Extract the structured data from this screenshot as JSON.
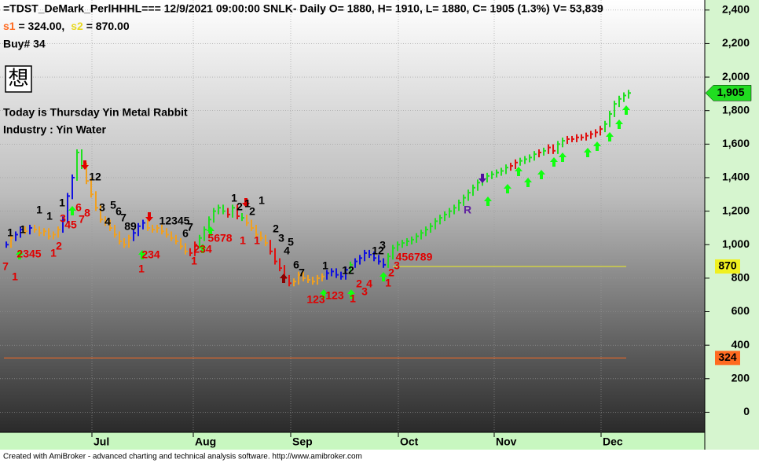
{
  "header": {
    "title": "=TDST_DeMark_PerlHHHL===  12/9/2021 09:00:00 SNLK- Daily O= 1880, H= 1910, L= 1880, C= 1905 (1.3%) V= 53,839",
    "s1_name": "s1",
    "s1_text": " = 324.00,",
    "s2_name": "s2",
    "s2_text": " = 870.00",
    "buy": "Buy# 34",
    "glyph": "想",
    "today": "Today is Thursday Yin Metal Rabbit",
    "industry": "Industry : Yin Water"
  },
  "chart_data": {
    "type": "ohlc",
    "ylim": [
      -120,
      2460
    ],
    "yticks": [
      0,
      200,
      400,
      600,
      800,
      {
        "value": 1000,
        "label": "1,000"
      },
      {
        "value": 1200,
        "label": "1,200"
      },
      {
        "value": 1400,
        "label": "1,400"
      },
      {
        "value": 1600,
        "label": "1,600"
      },
      {
        "value": 1800,
        "label": "1,800"
      },
      {
        "value": 2000,
        "label": "2,000"
      },
      {
        "value": 2200,
        "label": "2,200"
      },
      {
        "value": 2400,
        "label": "2,400"
      }
    ],
    "grid": true,
    "x_labels": [
      "Jul",
      "Aug",
      "Sep",
      "Oct",
      "Nov",
      "Dec"
    ],
    "series": [
      {
        "values": [
          1000,
          1040,
          1060,
          1090,
          1080,
          1100,
          1090,
          1070,
          1080,
          1050,
          1060,
          1090,
          1150,
          1290,
          1400,
          1550,
          1470,
          1380,
          1300,
          1220,
          1150,
          1130,
          1100,
          1060,
          1020,
          1000,
          1040,
          1070,
          1110,
          1130,
          1100,
          1090,
          1100,
          1080,
          1060,
          1040,
          1020,
          990,
          960,
          950,
          1000,
          1040,
          1090,
          1150,
          1200,
          1220,
          1200,
          1180,
          1220,
          1170,
          1160,
          1130,
          1100,
          1060,
          1040,
          1010,
          960,
          900,
          860,
          800,
          770,
          780,
          820,
          800,
          790,
          780,
          800,
          810,
          830,
          840,
          820,
          810,
          850,
          880,
          900,
          920,
          950,
          940,
          920,
          900,
          880,
          930,
          980,
          1000,
          1010,
          1020,
          1030,
          1050,
          1070,
          1090,
          1110,
          1140,
          1160,
          1180,
          1200,
          1220,
          1250,
          1280,
          1310,
          1340,
          1370,
          1390,
          1410,
          1420,
          1430,
          1440,
          1460,
          1470,
          1490,
          1500,
          1510,
          1520,
          1540,
          1550,
          1560,
          1580,
          1560,
          1600,
          1620,
          1630,
          1630,
          1640,
          1640,
          1650,
          1660,
          1670,
          1690,
          1720,
          1780,
          1840,
          1870,
          1890,
          1905
        ],
        "bar_colors": [
          "#1010e0",
          "#f0a020",
          "#1010e0",
          "#1010e0",
          "#f0a020",
          "#1010e0",
          "#f0a020",
          "#f0a020",
          "#f0a020",
          "#f0a020",
          "#f0a020",
          "#f0a020",
          "#1010e0",
          "#1010e0",
          "#1010e0",
          "#20e020",
          "#20e020",
          "#f0a020",
          "#f0a020",
          "#f0a020",
          "#f0a020",
          "#f0a020",
          "#f0a020",
          "#f0a020",
          "#f0a020",
          "#f0a020",
          "#f0a020",
          "#1010e0",
          "#1010e0",
          "#1010e0",
          "#f0a020",
          "#f0a020",
          "#f0a020",
          "#f0a020",
          "#f0a020",
          "#f0a020",
          "#f0a020",
          "#f0a020",
          "#f0a020",
          "#e01010",
          "#e01010",
          "#20e020",
          "#20e020",
          "#20e020",
          "#20e020",
          "#20e020",
          "#20e020",
          "#e01010",
          "#20e020",
          "#e01010",
          "#20e020",
          "#f0a020",
          "#f0a020",
          "#f0a020",
          "#f0a020",
          "#f0a020",
          "#e01010",
          "#e01010",
          "#e01010",
          "#e01010",
          "#e01010",
          "#f0a020",
          "#f0a020",
          "#f0a020",
          "#f0a020",
          "#f0a020",
          "#f0a020",
          "#f0a020",
          "#1010e0",
          "#1010e0",
          "#1010e0",
          "#1010e0",
          "#1010e0",
          "#20e020",
          "#1010e0",
          "#1010e0",
          "#1010e0",
          "#1010e0",
          "#1010e0",
          "#1010e0",
          "#1010e0",
          "#20e020",
          "#20e020",
          "#20e020",
          "#20e020",
          "#20e020",
          "#20e020",
          "#20e020",
          "#20e020",
          "#20e020",
          "#20e020",
          "#20e020",
          "#20e020",
          "#20e020",
          "#20e020",
          "#20e020",
          "#20e020",
          "#20e020",
          "#20e020",
          "#20e020",
          "#20e020",
          "#20e020",
          "#20e020",
          "#20e020",
          "#20e020",
          "#20e020",
          "#20e020",
          "#e01010",
          "#e01010",
          "#20e020",
          "#20e020",
          "#20e020",
          "#20e020",
          "#e01010",
          "#20e020",
          "#e01010",
          "#e01010",
          "#20e020",
          "#20e020",
          "#e01010",
          "#e01010",
          "#e01010",
          "#e01010",
          "#e01010",
          "#e01010",
          "#e01010",
          "#e01010",
          "#20e020",
          "#20e020",
          "#20e020",
          "#20e020",
          "#20e020",
          "#20e020"
        ]
      }
    ],
    "last_price": {
      "value": 1905,
      "value_label": "1,905",
      "color": "#20dd20"
    },
    "levels": [
      {
        "value": 324,
        "color": "#ff6a20"
      },
      {
        "value": 870,
        "color": "#f0f020"
      }
    ],
    "annotations": [
      {
        "text": "1",
        "color": "#000000"
      },
      {
        "text": "1",
        "color": "#000000"
      },
      {
        "text": "1",
        "color": "#000000"
      },
      {
        "text": "1",
        "color": "#000000"
      },
      {
        "text": "1",
        "color": "#000000"
      },
      {
        "text": "12",
        "color": "#000000"
      },
      {
        "text": "3",
        "color": "#000000"
      },
      {
        "text": "4",
        "color": "#000000"
      },
      {
        "text": "5",
        "color": "#000000"
      },
      {
        "text": "6",
        "color": "#000000"
      },
      {
        "text": "7",
        "color": "#000000"
      },
      {
        "text": "89",
        "color": "#000000"
      },
      {
        "text": "12345",
        "color": "#000000"
      },
      {
        "text": "6",
        "color": "#000000"
      },
      {
        "text": "7",
        "color": "#000000"
      },
      {
        "text": "1",
        "color": "#000000"
      },
      {
        "text": "2",
        "color": "#000000"
      },
      {
        "text": "1",
        "color": "#000000"
      },
      {
        "text": "2",
        "color": "#000000"
      },
      {
        "text": "1",
        "color": "#000000"
      },
      {
        "text": "2",
        "color": "#000000"
      },
      {
        "text": "3",
        "color": "#000000"
      },
      {
        "text": "4",
        "color": "#000000"
      },
      {
        "text": "5",
        "color": "#000000"
      },
      {
        "text": "6",
        "color": "#000000"
      },
      {
        "text": "7",
        "color": "#000000"
      },
      {
        "text": "1",
        "color": "#000000"
      },
      {
        "text": "12",
        "color": "#000000"
      },
      {
        "text": "12",
        "color": "#000000"
      },
      {
        "text": "3",
        "color": "#000000"
      },
      {
        "text": "7",
        "color": "#e00000"
      },
      {
        "text": "1",
        "color": "#e00000"
      },
      {
        "text": "2345",
        "color": "#e00000"
      },
      {
        "text": "1",
        "color": "#e00000"
      },
      {
        "text": "2",
        "color": "#e00000"
      },
      {
        "text": "3",
        "color": "#e00000"
      },
      {
        "text": "45",
        "color": "#e00000"
      },
      {
        "text": "6",
        "color": "#e00000"
      },
      {
        "text": "7",
        "color": "#e00000"
      },
      {
        "text": "8",
        "color": "#e00000"
      },
      {
        "text": "1",
        "color": "#e00000"
      },
      {
        "text": "234",
        "color": "#e00000"
      },
      {
        "text": "1",
        "color": "#e00000"
      },
      {
        "text": "234",
        "color": "#e00000"
      },
      {
        "text": "5678",
        "color": "#e00000"
      },
      {
        "text": "1",
        "color": "#e00000"
      },
      {
        "text": "1",
        "color": "#e00000"
      },
      {
        "text": "123",
        "color": "#e00000"
      },
      {
        "text": "123",
        "color": "#e00000"
      },
      {
        "text": "1",
        "color": "#e00000"
      },
      {
        "text": "2",
        "color": "#e00000"
      },
      {
        "text": "3",
        "color": "#e00000"
      },
      {
        "text": "4",
        "color": "#e00000"
      },
      {
        "text": "1",
        "color": "#e00000"
      },
      {
        "text": "2",
        "color": "#e00000"
      },
      {
        "text": "3",
        "color": "#e00000"
      },
      {
        "text": "456789",
        "color": "#e00000"
      },
      {
        "text": "R",
        "color": "#6020a0"
      }
    ]
  },
  "footer": {
    "text": "Created with AmiBroker - advanced charting and technical analysis software. http://www.amibroker.com"
  }
}
